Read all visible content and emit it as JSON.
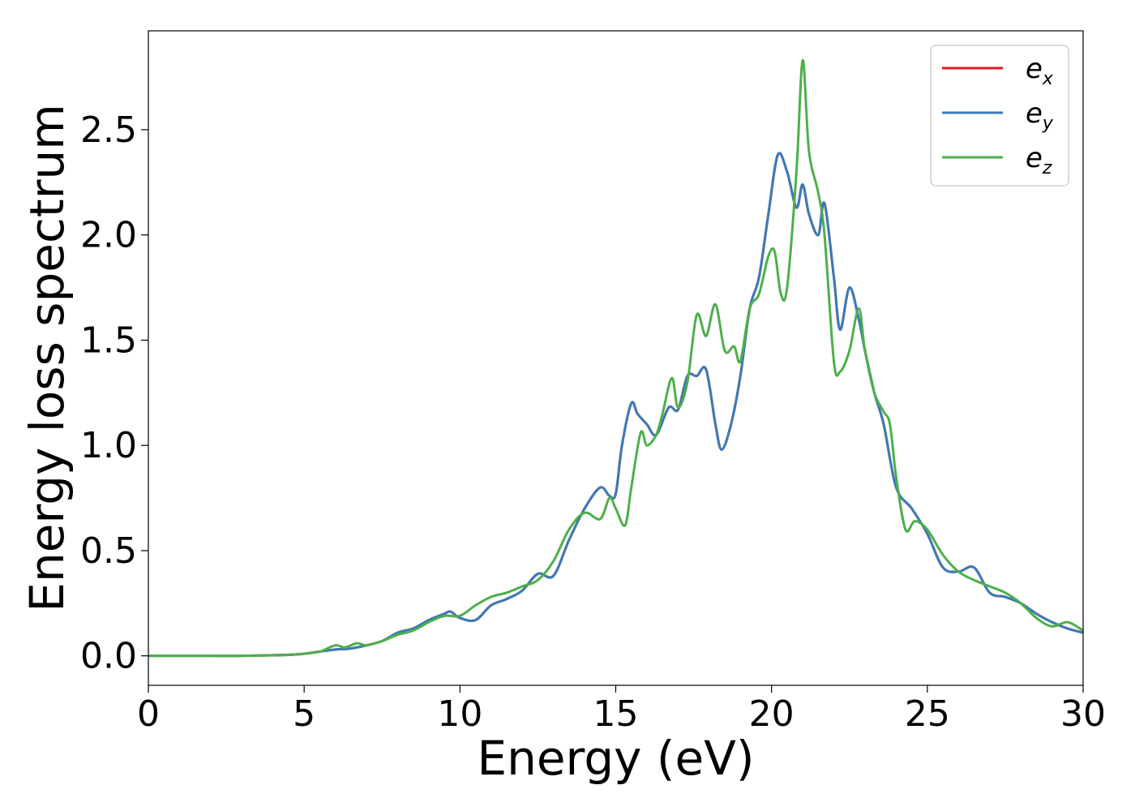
{
  "chart_data": {
    "type": "line",
    "title": "",
    "xlabel": "Energy (eV)",
    "ylabel": "Energy loss spectrum",
    "xlim": [
      0,
      30
    ],
    "ylim": [
      -0.14,
      2.97
    ],
    "xticks": [
      0,
      5,
      10,
      15,
      20,
      25,
      30
    ],
    "yticks": [
      0.0,
      0.5,
      1.0,
      1.5,
      2.0,
      2.5
    ],
    "xtick_labels": [
      "0",
      "5",
      "10",
      "15",
      "20",
      "25",
      "30"
    ],
    "ytick_labels": [
      "0.0",
      "0.5",
      "1.0",
      "1.5",
      "2.0",
      "2.5"
    ],
    "grid": false,
    "legend_position": "top-right",
    "series": [
      {
        "name": "e_x",
        "color": "#e41a1c",
        "x": [
          0,
          1,
          2,
          3,
          4,
          4.5,
          5,
          5.5,
          6,
          6.5,
          7,
          7.5,
          8,
          8.5,
          9,
          9.5,
          9.7,
          10,
          10.5,
          11,
          11.5,
          12,
          12.5,
          13,
          13.5,
          14,
          14.5,
          14.8,
          15,
          15.2,
          15.5,
          15.7,
          16,
          16.3,
          16.7,
          17,
          17.3,
          17.6,
          17.9,
          18.2,
          18.4,
          18.7,
          19,
          19.3,
          19.6,
          19.9,
          20.2,
          20.5,
          20.8,
          21,
          21.2,
          21.5,
          21.7,
          22,
          22.2,
          22.5,
          22.8,
          23,
          23.3,
          23.6,
          24,
          24.5,
          25,
          25.5,
          26,
          26.5,
          27,
          27.5,
          28,
          28.5,
          29,
          29.5,
          30
        ],
        "y": [
          0,
          0,
          0,
          0,
          0.003,
          0.005,
          0.01,
          0.02,
          0.03,
          0.035,
          0.05,
          0.07,
          0.11,
          0.13,
          0.17,
          0.2,
          0.21,
          0.18,
          0.17,
          0.24,
          0.27,
          0.31,
          0.39,
          0.38,
          0.55,
          0.7,
          0.8,
          0.76,
          0.77,
          1.0,
          1.2,
          1.15,
          1.1,
          1.05,
          1.18,
          1.17,
          1.33,
          1.33,
          1.36,
          1.1,
          0.98,
          1.1,
          1.33,
          1.65,
          1.8,
          2.1,
          2.38,
          2.3,
          2.13,
          2.24,
          2.1,
          2.0,
          2.15,
          1.8,
          1.55,
          1.75,
          1.6,
          1.45,
          1.25,
          1.1,
          0.8,
          0.7,
          0.58,
          0.42,
          0.4,
          0.42,
          0.3,
          0.28,
          0.25,
          0.2,
          0.16,
          0.13,
          0.11
        ]
      },
      {
        "name": "e_y",
        "color": "#3a7bb8",
        "x": [
          0,
          1,
          2,
          3,
          4,
          4.5,
          5,
          5.5,
          6,
          6.5,
          7,
          7.5,
          8,
          8.5,
          9,
          9.5,
          9.7,
          10,
          10.5,
          11,
          11.5,
          12,
          12.5,
          13,
          13.5,
          14,
          14.5,
          14.8,
          15,
          15.2,
          15.5,
          15.7,
          16,
          16.3,
          16.7,
          17,
          17.3,
          17.6,
          17.9,
          18.2,
          18.4,
          18.7,
          19,
          19.3,
          19.6,
          19.9,
          20.2,
          20.5,
          20.8,
          21,
          21.2,
          21.5,
          21.7,
          22,
          22.2,
          22.5,
          22.8,
          23,
          23.3,
          23.6,
          24,
          24.5,
          25,
          25.5,
          26,
          26.5,
          27,
          27.5,
          28,
          28.5,
          29,
          29.5,
          30
        ],
        "y": [
          0,
          0,
          0,
          0,
          0.003,
          0.005,
          0.01,
          0.02,
          0.03,
          0.035,
          0.05,
          0.07,
          0.11,
          0.13,
          0.17,
          0.2,
          0.21,
          0.18,
          0.17,
          0.24,
          0.27,
          0.31,
          0.39,
          0.38,
          0.55,
          0.7,
          0.8,
          0.76,
          0.77,
          1.0,
          1.2,
          1.15,
          1.1,
          1.05,
          1.18,
          1.17,
          1.33,
          1.33,
          1.36,
          1.1,
          0.98,
          1.1,
          1.33,
          1.65,
          1.8,
          2.1,
          2.38,
          2.3,
          2.13,
          2.24,
          2.1,
          2.0,
          2.15,
          1.8,
          1.55,
          1.75,
          1.6,
          1.45,
          1.25,
          1.1,
          0.8,
          0.7,
          0.58,
          0.42,
          0.4,
          0.42,
          0.3,
          0.28,
          0.25,
          0.2,
          0.16,
          0.13,
          0.11
        ]
      },
      {
        "name": "e_z",
        "color": "#4daf4a",
        "x": [
          0,
          1,
          2,
          3,
          4,
          4.5,
          5,
          5.5,
          6,
          6.3,
          6.7,
          7,
          7.5,
          8,
          8.5,
          9,
          9.5,
          10,
          10.5,
          11,
          11.5,
          12,
          12.5,
          13,
          13.5,
          14,
          14.5,
          14.8,
          15,
          15.3,
          15.5,
          15.8,
          16,
          16.3,
          16.5,
          16.8,
          17,
          17.3,
          17.6,
          17.9,
          18.2,
          18.5,
          18.8,
          19,
          19.3,
          19.6,
          19.9,
          20.1,
          20.3,
          20.5,
          20.8,
          21,
          21.2,
          21.5,
          21.7,
          22,
          22.2,
          22.5,
          22.8,
          23,
          23.3,
          23.6,
          23.8,
          24,
          24.3,
          24.6,
          25,
          25.5,
          26,
          26.5,
          27,
          27.5,
          28,
          28.5,
          29,
          29.5,
          30
        ],
        "y": [
          0,
          0,
          0,
          0,
          0.002,
          0.004,
          0.01,
          0.02,
          0.05,
          0.04,
          0.06,
          0.05,
          0.07,
          0.1,
          0.12,
          0.16,
          0.19,
          0.19,
          0.24,
          0.28,
          0.3,
          0.33,
          0.36,
          0.45,
          0.6,
          0.68,
          0.65,
          0.75,
          0.7,
          0.62,
          0.8,
          1.06,
          1.0,
          1.05,
          1.15,
          1.32,
          1.18,
          1.3,
          1.62,
          1.52,
          1.67,
          1.45,
          1.47,
          1.4,
          1.65,
          1.72,
          1.9,
          1.92,
          1.72,
          1.75,
          2.3,
          2.83,
          2.4,
          2.2,
          2.0,
          1.4,
          1.35,
          1.45,
          1.65,
          1.45,
          1.25,
          1.16,
          1.1,
          0.85,
          0.6,
          0.64,
          0.6,
          0.48,
          0.4,
          0.36,
          0.33,
          0.3,
          0.25,
          0.18,
          0.14,
          0.16,
          0.12
        ]
      }
    ]
  },
  "legend": {
    "entries": [
      {
        "base": "e",
        "sub": "x"
      },
      {
        "base": "e",
        "sub": "y"
      },
      {
        "base": "e",
        "sub": "z"
      }
    ]
  }
}
